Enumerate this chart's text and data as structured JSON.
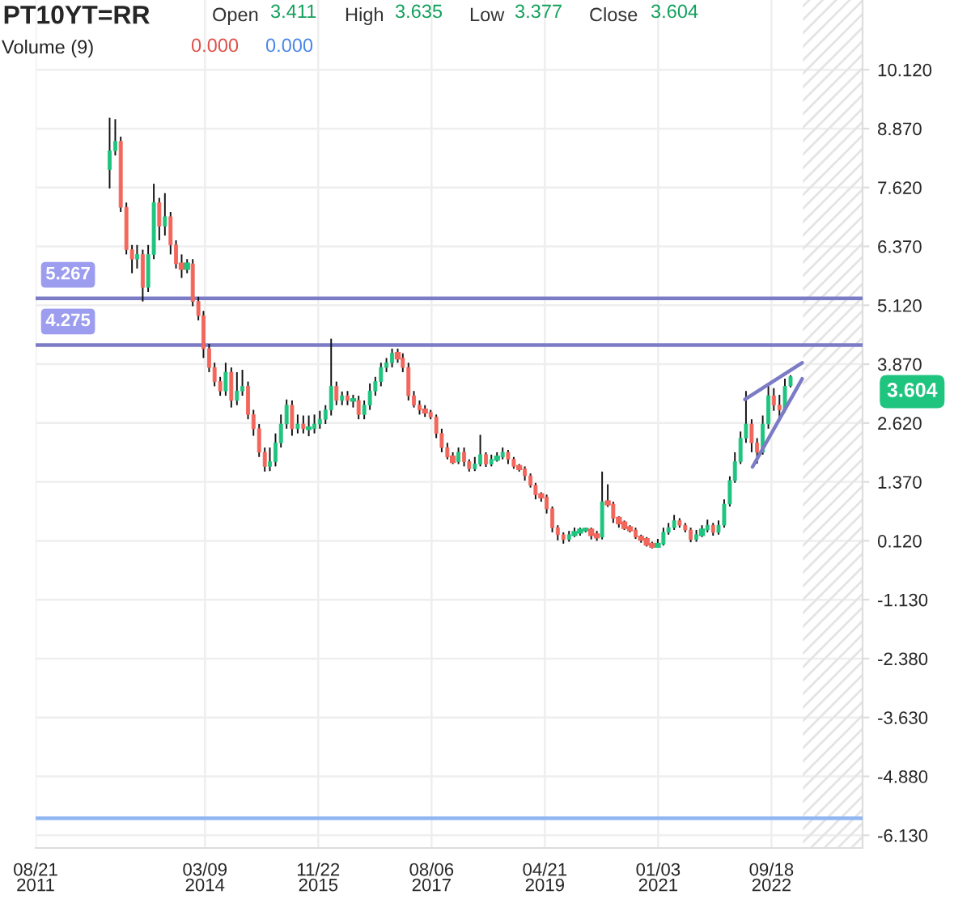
{
  "chart_data": {
    "type": "candlestick",
    "title": "PT10YT=RR",
    "x": [
      "2012-10",
      "2012-11",
      "2012-12",
      "2013-01",
      "2013-02",
      "2013-03",
      "2013-04",
      "2013-05",
      "2013-06",
      "2013-07",
      "2013-08",
      "2013-09",
      "2013-10",
      "2013-11",
      "2013-12",
      "2014-01",
      "2014-02",
      "2014-03",
      "2014-04",
      "2014-05",
      "2014-06",
      "2014-07",
      "2014-08",
      "2014-09",
      "2014-10",
      "2014-11",
      "2014-12",
      "2015-01",
      "2015-02",
      "2015-03",
      "2015-04",
      "2015-05",
      "2015-06",
      "2015-07",
      "2015-08",
      "2015-09",
      "2015-10",
      "2015-11",
      "2015-12",
      "2016-01",
      "2016-02",
      "2016-03",
      "2016-04",
      "2016-05",
      "2016-06",
      "2016-07",
      "2016-08",
      "2016-09",
      "2016-10",
      "2016-11",
      "2016-12",
      "2017-01",
      "2017-02",
      "2017-03",
      "2017-04",
      "2017-05",
      "2017-06",
      "2017-07",
      "2017-08",
      "2017-09",
      "2017-10",
      "2017-11",
      "2017-12",
      "2018-01",
      "2018-02",
      "2018-03",
      "2018-04",
      "2018-05",
      "2018-06",
      "2018-07",
      "2018-08",
      "2018-09",
      "2018-10",
      "2018-11",
      "2018-12",
      "2019-01",
      "2019-02",
      "2019-03",
      "2019-04",
      "2019-05",
      "2019-06",
      "2019-07",
      "2019-08",
      "2019-09",
      "2019-10",
      "2019-11",
      "2019-12",
      "2020-01",
      "2020-02",
      "2020-03",
      "2020-04",
      "2020-05",
      "2020-06",
      "2020-07",
      "2020-08",
      "2020-09",
      "2020-10",
      "2020-11",
      "2020-12",
      "2021-01",
      "2021-02",
      "2021-03",
      "2021-04",
      "2021-05",
      "2021-06",
      "2021-07",
      "2021-08",
      "2021-09",
      "2021-10",
      "2021-11",
      "2021-12",
      "2022-01",
      "2022-02",
      "2022-03",
      "2022-04",
      "2022-05",
      "2022-06",
      "2022-07",
      "2022-08",
      "2022-09",
      "2022-10",
      "2022-11",
      "2022-12",
      "2023-01"
    ],
    "ohlc": [
      [
        8.0,
        9.1,
        7.6,
        8.4
      ],
      [
        8.4,
        9.07,
        8.3,
        8.6
      ],
      [
        8.6,
        8.7,
        7.1,
        7.2
      ],
      [
        7.2,
        7.3,
        6.2,
        6.3
      ],
      [
        6.3,
        6.4,
        5.8,
        6.1
      ],
      [
        6.1,
        6.4,
        5.9,
        6.2
      ],
      [
        6.2,
        6.3,
        5.2,
        5.5
      ],
      [
        5.5,
        6.4,
        5.4,
        6.2
      ],
      [
        6.2,
        7.7,
        6.1,
        7.3
      ],
      [
        7.3,
        7.4,
        6.5,
        6.8
      ],
      [
        6.8,
        7.5,
        6.6,
        7.0
      ],
      [
        7.0,
        7.1,
        6.2,
        6.4
      ],
      [
        6.4,
        6.5,
        5.9,
        6.0
      ],
      [
        6.0,
        6.2,
        5.7,
        5.9
      ],
      [
        5.9,
        6.1,
        5.8,
        6.0
      ],
      [
        6.0,
        6.1,
        5.1,
        5.2
      ],
      [
        5.2,
        5.3,
        4.8,
        4.9
      ],
      [
        4.9,
        5.0,
        4.0,
        4.2
      ],
      [
        4.2,
        4.3,
        3.7,
        3.8
      ],
      [
        3.8,
        3.9,
        3.4,
        3.5
      ],
      [
        3.5,
        3.6,
        3.2,
        3.3
      ],
      [
        3.3,
        3.9,
        3.2,
        3.7
      ],
      [
        3.7,
        3.8,
        2.95,
        3.1
      ],
      [
        3.1,
        3.7,
        3.0,
        3.3
      ],
      [
        3.3,
        3.75,
        3.2,
        3.4
      ],
      [
        3.4,
        3.5,
        2.7,
        2.8
      ],
      [
        2.8,
        2.9,
        2.35,
        2.5
      ],
      [
        2.5,
        2.6,
        1.9,
        2.0
      ],
      [
        2.0,
        2.1,
        1.59,
        1.7
      ],
      [
        1.7,
        2.1,
        1.6,
        1.8
      ],
      [
        1.8,
        2.4,
        1.7,
        2.2
      ],
      [
        2.2,
        2.8,
        2.1,
        2.6
      ],
      [
        2.6,
        3.12,
        2.5,
        3.0
      ],
      [
        3.0,
        3.1,
        2.35,
        2.5
      ],
      [
        2.5,
        2.8,
        2.4,
        2.6
      ],
      [
        2.6,
        2.78,
        2.4,
        2.5
      ],
      [
        2.5,
        2.78,
        2.34,
        2.5
      ],
      [
        2.5,
        2.8,
        2.4,
        2.6
      ],
      [
        2.6,
        2.88,
        2.5,
        2.7
      ],
      [
        2.7,
        3.0,
        2.6,
        2.9
      ],
      [
        2.9,
        4.41,
        2.78,
        3.4
      ],
      [
        3.4,
        3.5,
        3.0,
        3.1
      ],
      [
        3.1,
        3.29,
        3.0,
        3.2
      ],
      [
        3.2,
        3.3,
        3.0,
        3.1
      ],
      [
        3.1,
        3.22,
        2.95,
        3.1
      ],
      [
        3.1,
        3.2,
        2.7,
        2.8
      ],
      [
        2.8,
        3.1,
        2.7,
        3.0
      ],
      [
        3.0,
        3.46,
        2.9,
        3.3
      ],
      [
        3.3,
        3.6,
        3.2,
        3.5
      ],
      [
        3.5,
        3.9,
        3.4,
        3.8
      ],
      [
        3.8,
        4.0,
        3.7,
        3.9
      ],
      [
        3.9,
        4.2,
        3.8,
        4.1
      ],
      [
        4.1,
        4.2,
        3.9,
        4.0
      ],
      [
        4.0,
        4.1,
        3.7,
        3.8
      ],
      [
        3.8,
        3.9,
        3.1,
        3.2
      ],
      [
        3.2,
        3.3,
        2.95,
        3.0
      ],
      [
        3.0,
        3.1,
        2.8,
        2.9
      ],
      [
        2.9,
        3.0,
        2.75,
        2.85
      ],
      [
        2.85,
        2.9,
        2.7,
        2.75
      ],
      [
        2.75,
        2.8,
        2.3,
        2.4
      ],
      [
        2.4,
        2.5,
        2.0,
        2.1
      ],
      [
        2.1,
        2.2,
        1.85,
        1.9
      ],
      [
        1.9,
        2.0,
        1.75,
        1.8
      ],
      [
        1.8,
        2.1,
        1.75,
        2.0
      ],
      [
        2.0,
        2.1,
        1.7,
        1.8
      ],
      [
        1.8,
        1.85,
        1.59,
        1.65
      ],
      [
        1.65,
        1.9,
        1.6,
        1.75
      ],
      [
        1.75,
        2.37,
        1.7,
        1.95
      ],
      [
        1.95,
        2.0,
        1.69,
        1.75
      ],
      [
        1.75,
        1.95,
        1.7,
        1.85
      ],
      [
        1.85,
        2.0,
        1.8,
        1.9
      ],
      [
        1.9,
        2.1,
        1.85,
        2.0
      ],
      [
        2.0,
        2.05,
        1.75,
        1.85
      ],
      [
        1.85,
        1.9,
        1.65,
        1.7
      ],
      [
        1.7,
        1.75,
        1.59,
        1.65
      ],
      [
        1.65,
        1.7,
        1.4,
        1.5
      ],
      [
        1.5,
        1.55,
        1.25,
        1.3
      ],
      [
        1.3,
        1.35,
        1.0,
        1.1
      ],
      [
        1.1,
        1.15,
        0.95,
        1.05
      ],
      [
        1.05,
        1.1,
        0.7,
        0.8
      ],
      [
        0.8,
        0.85,
        0.3,
        0.4
      ],
      [
        0.4,
        0.45,
        0.13,
        0.25
      ],
      [
        0.25,
        0.3,
        0.06,
        0.15
      ],
      [
        0.15,
        0.33,
        0.1,
        0.25
      ],
      [
        0.25,
        0.4,
        0.2,
        0.3
      ],
      [
        0.3,
        0.4,
        0.23,
        0.35
      ],
      [
        0.35,
        0.4,
        0.3,
        0.35
      ],
      [
        0.35,
        0.4,
        0.15,
        0.25
      ],
      [
        0.25,
        0.33,
        0.12,
        0.2
      ],
      [
        0.2,
        1.59,
        0.15,
        0.95
      ],
      [
        0.95,
        1.32,
        0.84,
        0.9
      ],
      [
        0.9,
        0.95,
        0.5,
        0.6
      ],
      [
        0.6,
        0.64,
        0.4,
        0.5
      ],
      [
        0.5,
        0.55,
        0.35,
        0.4
      ],
      [
        0.4,
        0.45,
        0.3,
        0.35
      ],
      [
        0.35,
        0.4,
        0.16,
        0.2
      ],
      [
        0.2,
        0.25,
        0.08,
        0.15
      ],
      [
        0.15,
        0.2,
        0.0,
        0.05
      ],
      [
        0.05,
        0.1,
        -0.04,
        0.0
      ],
      [
        0.0,
        0.16,
        -0.02,
        0.05
      ],
      [
        0.05,
        0.4,
        0.02,
        0.3
      ],
      [
        0.3,
        0.5,
        0.25,
        0.4
      ],
      [
        0.4,
        0.67,
        0.35,
        0.55
      ],
      [
        0.55,
        0.6,
        0.4,
        0.45
      ],
      [
        0.45,
        0.5,
        0.3,
        0.35
      ],
      [
        0.35,
        0.4,
        0.09,
        0.15
      ],
      [
        0.15,
        0.35,
        0.1,
        0.25
      ],
      [
        0.25,
        0.45,
        0.2,
        0.35
      ],
      [
        0.35,
        0.57,
        0.3,
        0.45
      ],
      [
        0.45,
        0.5,
        0.23,
        0.3
      ],
      [
        0.3,
        0.55,
        0.25,
        0.45
      ],
      [
        0.45,
        1.0,
        0.4,
        0.9
      ],
      [
        0.9,
        1.49,
        0.85,
        1.4
      ],
      [
        1.4,
        2.0,
        1.35,
        1.8
      ],
      [
        1.8,
        2.44,
        1.75,
        2.3
      ],
      [
        2.3,
        3.3,
        2.2,
        2.6
      ],
      [
        2.6,
        2.7,
        2.0,
        2.2
      ],
      [
        2.2,
        2.3,
        1.76,
        2.0
      ],
      [
        2.0,
        2.78,
        1.95,
        2.6
      ],
      [
        2.6,
        3.46,
        2.5,
        3.2
      ],
      [
        3.2,
        3.36,
        2.88,
        3.0
      ],
      [
        3.0,
        3.22,
        2.71,
        2.9
      ],
      [
        2.9,
        3.56,
        2.85,
        3.4
      ],
      [
        3.411,
        3.635,
        3.377,
        3.604
      ]
    ],
    "series": [
      {
        "type": "line",
        "color": "#7b7bc6",
        "x": [
          "2022-04-25",
          "2023-03-06"
        ],
        "values": [
          3.12,
          3.9
        ]
      },
      {
        "type": "line",
        "color": "#7b7bc6",
        "x": [
          "2022-06-06",
          "2023-03-06"
        ],
        "values": [
          1.69,
          3.56
        ]
      }
    ],
    "ref_lines": [
      {
        "axis": "y",
        "value": 5.267,
        "label": "5.267",
        "color": "#7b7bc6"
      },
      {
        "axis": "y",
        "value": 4.275,
        "label": "4.275",
        "color": "#7b7bc6"
      },
      {
        "axis": "y",
        "value": -5.77,
        "color": "#8fb6f2"
      }
    ],
    "bands": [
      {
        "axis": "x",
        "from": "2023-03-10",
        "to": "2024-02-01",
        "color": "#e4e4e4"
      }
    ],
    "annotations": [
      "Open",
      "3.411",
      "High",
      "3.635",
      "Low",
      "3.377",
      "Close",
      "3.604",
      "Volume (9)",
      "0.000",
      "0.000",
      "3.604"
    ],
    "xlim": [
      "2011-08-21",
      "2024-02-01"
    ],
    "xticks": [
      {
        "value": "2011-08-21",
        "label": "08/21\n2011"
      },
      {
        "value": "2014-03-09",
        "label": "03/09\n2014"
      },
      {
        "value": "2015-11-22",
        "label": "11/22\n2015"
      },
      {
        "value": "2017-08-06",
        "label": "08/06\n2017"
      },
      {
        "value": "2019-04-21",
        "label": "04/21\n2019"
      },
      {
        "value": "2021-01-03",
        "label": "01/03\n2021"
      },
      {
        "value": "2022-09-18",
        "label": "09/18\n2022"
      }
    ],
    "ylim": [
      -6.4,
      11.6
    ],
    "yticks": [
      {
        "value": 10.12,
        "label": "10.120"
      },
      {
        "value": 8.87,
        "label": "8.870"
      },
      {
        "value": 7.62,
        "label": "7.620"
      },
      {
        "value": 6.37,
        "label": "6.370"
      },
      {
        "value": 5.12,
        "label": "5.120"
      },
      {
        "value": 3.87,
        "label": "3.870"
      },
      {
        "value": 2.62,
        "label": "2.620"
      },
      {
        "value": 1.37,
        "label": "1.370"
      },
      {
        "value": 0.12,
        "label": "0.120"
      },
      {
        "value": -1.13,
        "label": "-1.130"
      },
      {
        "value": -2.38,
        "label": "-2.380"
      },
      {
        "value": -3.63,
        "label": "-3.630"
      },
      {
        "value": -4.88,
        "label": "-4.880"
      },
      {
        "value": -6.13,
        "label": "-6.130"
      }
    ],
    "grid": true
  }
}
